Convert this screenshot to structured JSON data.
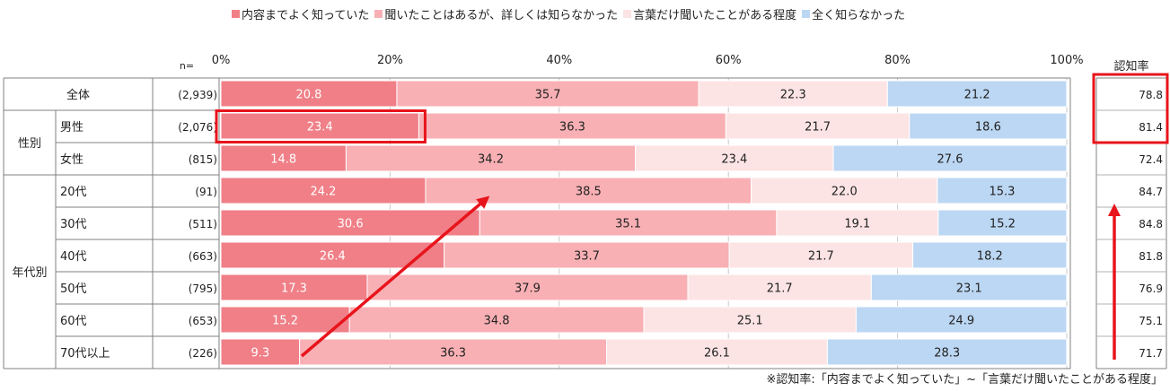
{
  "chart_data": {
    "type": "bar",
    "stacked": true,
    "orientation": "horizontal",
    "legend_position": "top",
    "grid": true,
    "xlim": [
      0,
      100
    ],
    "x_ticks": [
      "0%",
      "20%",
      "40%",
      "60%",
      "80%",
      "100%"
    ],
    "n_label": "n=",
    "aux_header": "認知率",
    "footnote": "※認知率:「内容までよく知っていた」~「言葉だけ聞いたことがある程度」",
    "series": [
      {
        "name": "内容までよく知っていた",
        "color": "#f07f87",
        "label_color": "#ffffff"
      },
      {
        "name": "聞いたことはあるが、詳しくは知らなかった",
        "color": "#f8b0b4",
        "label_color": "#222222"
      },
      {
        "name": "言葉だけ聞いたことがある程度",
        "color": "#fde4e4",
        "label_color": "#222222"
      },
      {
        "name": "全く知らなかった",
        "color": "#bcd7f3",
        "label_color": "#222222"
      }
    ],
    "rows": [
      {
        "group": "",
        "label": "全体",
        "n": "(2,939)",
        "values": [
          20.8,
          35.7,
          22.3,
          21.2
        ],
        "awareness": "78.8"
      },
      {
        "group": "性別",
        "label": "男性",
        "n": "(2,076)",
        "values": [
          23.4,
          36.3,
          21.7,
          18.6
        ],
        "awareness": "81.4"
      },
      {
        "group": "性別",
        "label": "女性",
        "n": "(815)",
        "values": [
          14.8,
          34.2,
          23.4,
          27.6
        ],
        "awareness": "72.4"
      },
      {
        "group": "年代別",
        "label": "20代",
        "n": "(91)",
        "values": [
          24.2,
          38.5,
          22.0,
          15.3
        ],
        "awareness": "84.7"
      },
      {
        "group": "年代別",
        "label": "30代",
        "n": "(511)",
        "values": [
          30.6,
          35.1,
          19.1,
          15.2
        ],
        "awareness": "84.8"
      },
      {
        "group": "年代別",
        "label": "40代",
        "n": "(663)",
        "values": [
          26.4,
          33.7,
          21.7,
          18.2
        ],
        "awareness": "81.8"
      },
      {
        "group": "年代別",
        "label": "50代",
        "n": "(795)",
        "values": [
          17.3,
          37.9,
          21.7,
          23.1
        ],
        "awareness": "76.9"
      },
      {
        "group": "年代別",
        "label": "60代",
        "n": "(653)",
        "values": [
          15.2,
          34.8,
          25.1,
          24.9
        ],
        "awareness": "75.1"
      },
      {
        "group": "年代別",
        "label": "70代以上",
        "n": "(226)",
        "values": [
          9.3,
          36.3,
          26.1,
          28.3
        ],
        "awareness": "71.7"
      }
    ],
    "annotations": {
      "highlight_segment": {
        "row": 1,
        "series": 0
      },
      "highlight_awareness_rows": [
        0,
        1
      ],
      "trend_arrow_rows": [
        8,
        4
      ],
      "awareness_arrow": "up",
      "accent_color": "#e8141b"
    }
  }
}
